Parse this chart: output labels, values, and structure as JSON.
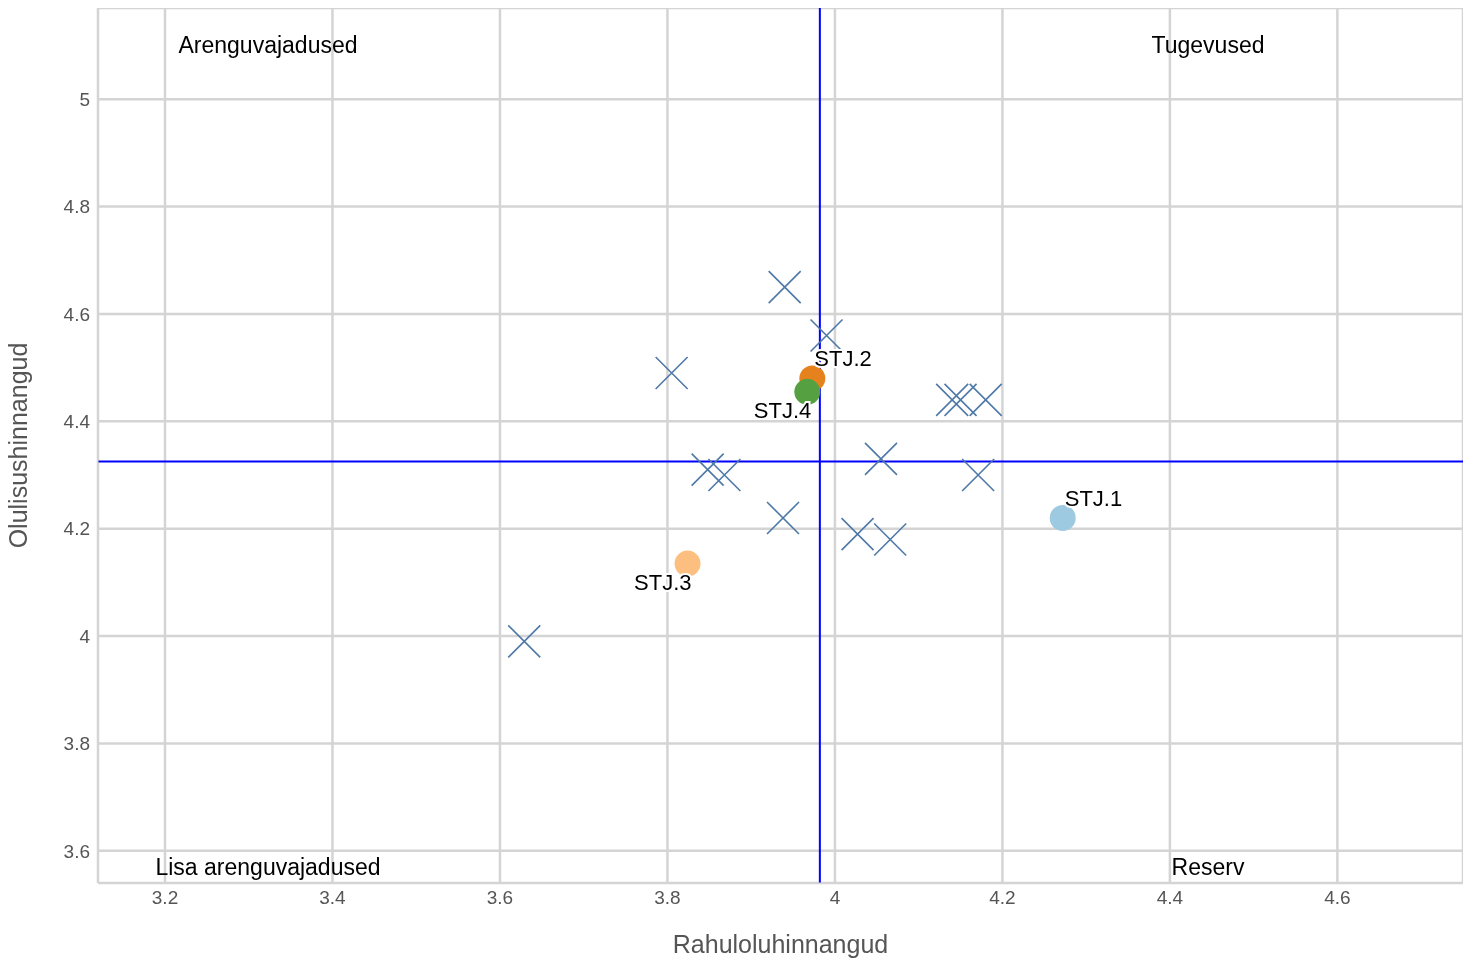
{
  "chart_data": {
    "type": "scatter",
    "xlabel": "Rahuloluhinnangud",
    "ylabel": "Olulisushinnangud",
    "xlim": [
      3.12,
      4.75
    ],
    "ylim": [
      3.54,
      5.17
    ],
    "xticks": [
      3.2,
      3.4,
      3.6,
      3.8,
      4,
      4.2,
      4.4,
      4.6
    ],
    "yticks": [
      3.6,
      3.8,
      4,
      4.2,
      4.4,
      4.6,
      4.8,
      5
    ],
    "grid": true,
    "legend": false,
    "series": [
      {
        "color": "#4e79a7",
        "marker": "cross",
        "x": [
          3.94,
          3.99,
          3.805,
          4.14,
          4.15,
          4.18,
          4.055,
          3.848,
          3.868,
          4.171,
          3.938,
          4.027,
          4.066,
          3.629
        ],
        "values": [
          4.65,
          4.56,
          4.49,
          4.44,
          4.44,
          4.44,
          4.33,
          4.31,
          4.3,
          4.3,
          4.22,
          4.19,
          4.18,
          3.99
        ]
      },
      {
        "name": "STJ.1",
        "color": "#9ecae1",
        "marker": "circle",
        "x": [
          4.272
        ],
        "values": [
          4.22
        ]
      },
      {
        "name": "STJ.2",
        "color": "#e6821e",
        "marker": "circle",
        "x": [
          3.973
        ],
        "values": [
          4.48
        ]
      },
      {
        "name": "STJ.3",
        "color": "#fdbf80",
        "marker": "circle",
        "x": [
          3.824
        ],
        "values": [
          4.135
        ]
      },
      {
        "name": "STJ.4",
        "color": "#55a040",
        "marker": "circle",
        "x": [
          3.967
        ],
        "values": [
          4.455
        ]
      }
    ],
    "ref_lines": [
      {
        "axis": "x",
        "value": 3.982,
        "color": "#0000ff"
      },
      {
        "axis": "y",
        "value": 4.325,
        "color": "#0000ff"
      }
    ],
    "annotations": [
      "Arenguvajadused",
      "Tugevused",
      "Lisa arenguvajadused",
      "Reserv"
    ]
  }
}
